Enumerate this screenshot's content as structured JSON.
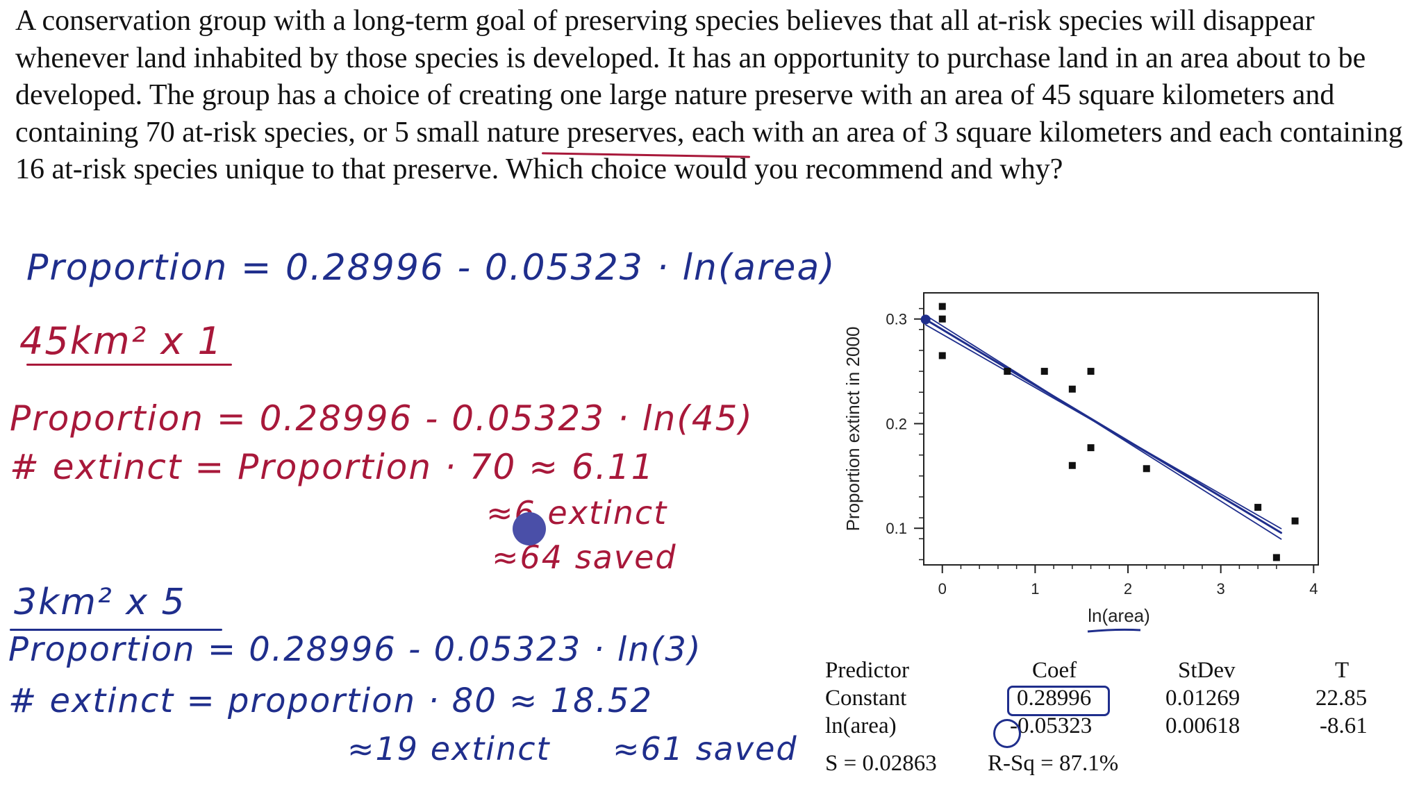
{
  "problem_text": "A conservation group with a long-term goal of preserving species believes that all at-risk species will disappear whenever land inhabited by those species is developed. It has an opportunity to purchase land in an area about to be developed. The group has a choice of creating one large nature preserve with an area of 45 square kilometers and containing 70 at-risk species, or 5 small nature preserves, each with an area of 3 square kilometers and each containing 16 at-risk species unique to that preserve. Which choice would you recommend and why?",
  "notes": {
    "formula": "Proportion = 0.28996 - 0.05323 · ln(area)",
    "large_header": "45km² x 1",
    "large_prop": "Proportion = 0.28996 - 0.05323 · ln(45)",
    "large_extinct": "# extinct = Proportion · 70  ≈ 6.11",
    "large_extinct_count": "≈6 extinct",
    "large_saved": "≈64 saved",
    "small_header": "3km² x 5",
    "small_prop": "Proportion = 0.28996 - 0.05323 · ln(3)",
    "small_extinct": "# extinct = proportion · 80  ≈ 18.52",
    "small_extinct_count": "≈19 extinct",
    "small_saved": "≈61 saved"
  },
  "regression": {
    "headers": [
      "Predictor",
      "Coef",
      "StDev",
      "T"
    ],
    "rows": [
      [
        "Constant",
        "0.28996",
        "0.01269",
        "22.85"
      ],
      [
        "ln(area)",
        "-0.05323",
        "0.00618",
        "-8.61"
      ]
    ],
    "s": "S = 0.02863",
    "rsq": "R-Sq = 87.1%"
  },
  "colors": {
    "blue_ink": "#1f2e8c",
    "red_ink": "#a8183a",
    "marker": "#4a4fa8"
  },
  "chart_data": {
    "type": "scatter",
    "xlabel": "ln(area)",
    "ylabel": "Proportion extinct in 2000",
    "xlim": [
      -0.2,
      4.05
    ],
    "ylim": [
      0.065,
      0.325
    ],
    "xticks": [
      0,
      1,
      2,
      3,
      4
    ],
    "yticks": [
      0.1,
      0.2,
      0.3
    ],
    "grid": false,
    "points": [
      [
        0,
        0.312
      ],
      [
        0,
        0.3
      ],
      [
        0,
        0.265
      ],
      [
        0.7,
        0.25
      ],
      [
        1.1,
        0.25
      ],
      [
        1.4,
        0.233
      ],
      [
        1.6,
        0.25
      ],
      [
        1.4,
        0.16
      ],
      [
        1.6,
        0.177
      ],
      [
        2.2,
        0.157
      ],
      [
        3.4,
        0.12
      ],
      [
        3.8,
        0.107
      ],
      [
        3.6,
        0.072
      ]
    ],
    "fit_line": {
      "intercept": 0.28996,
      "slope": -0.05323
    }
  }
}
